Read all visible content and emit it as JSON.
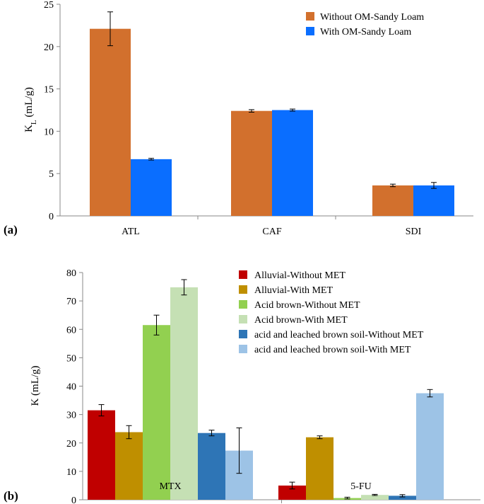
{
  "chart_data": [
    {
      "panel": "(a)",
      "type": "bar",
      "ylabel": "K",
      "ylabel_sub": "L",
      "ylabel_unit": " (mL/g)",
      "ylim": [
        0,
        25
      ],
      "yticks": [
        0,
        5,
        10,
        15,
        20,
        25
      ],
      "categories": [
        "ATL",
        "CAF",
        "SDI"
      ],
      "legend_position": "top-right",
      "series": [
        {
          "name": "Without OM-Sandy Loam",
          "color": "#D2702D",
          "values": [
            22.1,
            12.4,
            3.6
          ],
          "errors": [
            2.0,
            0.15,
            0.15
          ]
        },
        {
          "name": "With OM-Sandy Loam",
          "color": "#0A6EFF",
          "values": [
            6.7,
            12.5,
            3.6
          ],
          "errors": [
            0.1,
            0.12,
            0.35
          ]
        }
      ]
    },
    {
      "panel": "(b)",
      "type": "bar",
      "ylabel": "K",
      "ylabel_sub": "",
      "ylabel_unit": " (mL/g)",
      "ylim": [
        0,
        80
      ],
      "yticks": [
        0,
        10,
        20,
        30,
        40,
        50,
        60,
        70,
        80
      ],
      "categories": [
        "MTX",
        "5-FU"
      ],
      "legend_position": "top-right",
      "series": [
        {
          "name": "Alluvial-Without MET",
          "color": "#C00000",
          "values": [
            31.5,
            5.0
          ],
          "errors": [
            2.0,
            1.2
          ]
        },
        {
          "name": "Alluvial-With MET",
          "color": "#BF8F00",
          "values": [
            23.8,
            22.0
          ],
          "errors": [
            2.3,
            0.5
          ]
        },
        {
          "name": "Acid brown-Without MET",
          "color": "#92D050",
          "values": [
            61.5,
            0.6
          ],
          "errors": [
            3.5,
            0.3
          ]
        },
        {
          "name": "Acid brown-With MET",
          "color": "#C5E0B4",
          "values": [
            74.8,
            1.7
          ],
          "errors": [
            2.7,
            0.2
          ]
        },
        {
          "name": "acid and leached brown soil-Without MET",
          "color": "#2E75B6",
          "values": [
            23.5,
            1.4
          ],
          "errors": [
            1.0,
            0.4
          ]
        },
        {
          "name": "acid and leached brown soil-With MET",
          "color": "#9DC3E6",
          "values": [
            17.3,
            37.5
          ],
          "errors": [
            8.0,
            1.3
          ]
        }
      ]
    }
  ]
}
